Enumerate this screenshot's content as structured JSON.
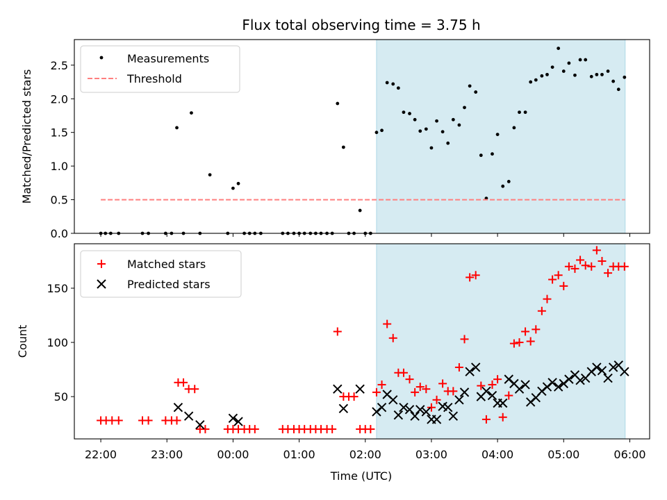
{
  "figure_title": "Flux total observing time = 3.75 h",
  "x_axis_label": "Time (UTC)",
  "colors": {
    "measurement": "#000000",
    "threshold": "#ff7f7f",
    "matched": "#ff0000",
    "predicted": "#000000",
    "span_fill": "#add8e6"
  },
  "chart_data": [
    {
      "type": "scatter",
      "title": "Flux total observing time = 3.75 h",
      "xlabel": "",
      "ylabel": "Matched/Predicted stars",
      "xlim": [
        -2.4,
        6.3
      ],
      "ylim": [
        0.0,
        2.88
      ],
      "yticks": [
        "0.0",
        "0.5",
        "1.0",
        "1.5",
        "2.0",
        "2.5"
      ],
      "yticks_values": [
        0,
        0.5,
        1.0,
        1.5,
        2.0,
        2.5
      ],
      "grid": false,
      "legend": "top-left",
      "shaded_span": [
        2.17,
        5.93
      ],
      "series": [
        {
          "name": "Measurements",
          "kind": "dots",
          "x": [
            -2.0,
            -1.93,
            -1.85,
            -1.73,
            -1.37,
            -1.28,
            -1.02,
            -0.93,
            -0.85,
            -0.75,
            -0.63,
            -0.5,
            -0.35,
            -0.08,
            0.0,
            0.08,
            0.17,
            0.25,
            0.33,
            0.42,
            0.75,
            0.83,
            0.92,
            1.0,
            1.08,
            1.17,
            1.25,
            1.33,
            1.42,
            1.5,
            1.58,
            1.67,
            1.75,
            1.83,
            1.92,
            2.0,
            2.08,
            2.17,
            2.25,
            2.33,
            2.42,
            2.5,
            2.58,
            2.67,
            2.75,
            2.83,
            2.92,
            3.0,
            3.08,
            3.17,
            3.25,
            3.33,
            3.42,
            3.5,
            3.58,
            3.67,
            3.75,
            3.83,
            3.92,
            4.0,
            4.08,
            4.17,
            4.25,
            4.33,
            4.42,
            4.5,
            4.58,
            4.67,
            4.75,
            4.83,
            4.92,
            5.0,
            5.08,
            5.17,
            5.25,
            5.33,
            5.42,
            5.5,
            5.58,
            5.67,
            5.75,
            5.83,
            5.92
          ],
          "y": [
            0.0,
            0.0,
            0.0,
            0.0,
            0.0,
            0.0,
            0.0,
            0.0,
            1.57,
            0.0,
            1.79,
            0.0,
            0.87,
            0.0,
            0.67,
            0.74,
            0.0,
            0.0,
            0.0,
            0.0,
            0.0,
            0.0,
            0.0,
            0.0,
            0.0,
            0.0,
            0.0,
            0.0,
            0.0,
            0.0,
            1.93,
            1.28,
            0.0,
            0.0,
            0.34,
            0.0,
            0.0,
            1.5,
            1.53,
            2.24,
            2.22,
            2.16,
            1.8,
            1.78,
            1.69,
            1.52,
            1.55,
            1.27,
            1.67,
            1.51,
            1.34,
            1.69,
            1.61,
            1.87,
            2.19,
            2.1,
            1.16,
            0.52,
            1.18,
            1.47,
            0.7,
            0.77,
            1.57,
            1.8,
            1.8,
            2.25,
            2.28,
            2.34,
            2.36,
            2.47,
            2.75,
            2.41,
            2.53,
            2.35,
            2.58,
            2.58,
            2.33,
            2.36,
            2.36,
            2.41,
            2.26,
            2.14,
            2.32
          ]
        },
        {
          "name": "Threshold",
          "kind": "dashed-line",
          "x": [
            -2.0,
            5.93
          ],
          "y": [
            0.5,
            0.5
          ]
        }
      ]
    },
    {
      "type": "scatter",
      "title": "",
      "xlabel": "Time (UTC)",
      "ylabel": "Count",
      "xlim": [
        -2.4,
        6.3
      ],
      "ylim": [
        11,
        191
      ],
      "yticks": [
        "50",
        "100",
        "150"
      ],
      "yticks_values": [
        50,
        100,
        150
      ],
      "xticks": [
        "22:00",
        "23:00",
        "00:00",
        "01:00",
        "02:00",
        "03:00",
        "04:00",
        "05:00",
        "06:00"
      ],
      "xticks_values": [
        -2,
        -1,
        0,
        1,
        2,
        3,
        4,
        5,
        6
      ],
      "grid": false,
      "legend": "top-left",
      "shaded_span": [
        2.17,
        5.93
      ],
      "series": [
        {
          "name": "Matched stars",
          "kind": "plus",
          "x": [
            -2.0,
            -1.92,
            -1.83,
            -1.73,
            -1.37,
            -1.28,
            -1.02,
            -0.93,
            -0.85,
            -0.83,
            -0.75,
            -0.67,
            -0.58,
            -0.5,
            -0.42,
            -0.08,
            0.0,
            0.08,
            0.17,
            0.25,
            0.33,
            0.75,
            0.83,
            0.92,
            1.0,
            1.08,
            1.17,
            1.25,
            1.33,
            1.42,
            1.5,
            1.58,
            1.67,
            1.75,
            1.83,
            1.92,
            2.0,
            2.08,
            2.17,
            2.25,
            2.33,
            2.42,
            2.5,
            2.58,
            2.67,
            2.75,
            2.83,
            2.92,
            3.0,
            3.08,
            3.17,
            3.25,
            3.33,
            3.42,
            3.5,
            3.58,
            3.67,
            3.75,
            3.83,
            3.92,
            4.0,
            4.08,
            4.17,
            4.25,
            4.33,
            4.42,
            4.5,
            4.58,
            4.67,
            4.75,
            4.83,
            4.92,
            5.0,
            5.08,
            5.17,
            5.25,
            5.33,
            5.42,
            5.5,
            5.58,
            5.67,
            5.75,
            5.83,
            5.92
          ],
          "y": [
            28,
            28,
            28,
            28,
            28,
            28,
            28,
            28,
            28,
            63,
            63,
            57,
            57,
            20,
            20,
            20,
            20,
            20,
            20,
            20,
            20,
            20,
            20,
            20,
            20,
            20,
            20,
            20,
            20,
            20,
            20,
            110,
            50,
            50,
            50,
            20,
            20,
            20,
            54,
            61,
            117,
            104,
            72,
            72,
            66,
            54,
            59,
            57,
            40,
            47,
            62,
            55,
            55,
            77,
            103,
            160,
            162,
            60,
            29,
            61,
            66,
            31,
            51,
            99,
            100,
            110,
            101,
            112,
            129,
            140,
            158,
            162,
            152,
            170,
            168,
            176,
            171,
            170,
            185,
            175,
            164,
            170,
            170,
            170
          ]
        },
        {
          "name": "Predicted stars",
          "kind": "x",
          "x": [
            -0.83,
            -0.67,
            -0.5,
            -0.0,
            0.08,
            1.58,
            1.67,
            1.92,
            2.17,
            2.25,
            2.33,
            2.42,
            2.5,
            2.58,
            2.67,
            2.75,
            2.83,
            2.92,
            3.0,
            3.08,
            3.17,
            3.25,
            3.33,
            3.42,
            3.5,
            3.58,
            3.67,
            3.75,
            3.83,
            3.92,
            4.0,
            4.08,
            4.17,
            4.25,
            4.33,
            4.42,
            4.5,
            4.58,
            4.67,
            4.75,
            4.83,
            4.92,
            5.0,
            5.08,
            5.17,
            5.25,
            5.33,
            5.42,
            5.5,
            5.58,
            5.67,
            5.75,
            5.83,
            5.92
          ],
          "y": [
            40,
            32,
            24,
            30,
            27,
            57,
            39,
            57,
            36,
            40,
            52,
            47,
            33,
            40,
            38,
            32,
            38,
            36,
            29,
            29,
            41,
            40,
            32,
            47,
            54,
            73,
            77,
            50,
            55,
            51,
            44,
            44,
            66,
            62,
            57,
            61,
            45,
            49,
            55,
            59,
            63,
            59,
            62,
            66,
            70,
            65,
            67,
            73,
            77,
            74,
            67,
            77,
            79,
            73
          ]
        }
      ]
    }
  ]
}
